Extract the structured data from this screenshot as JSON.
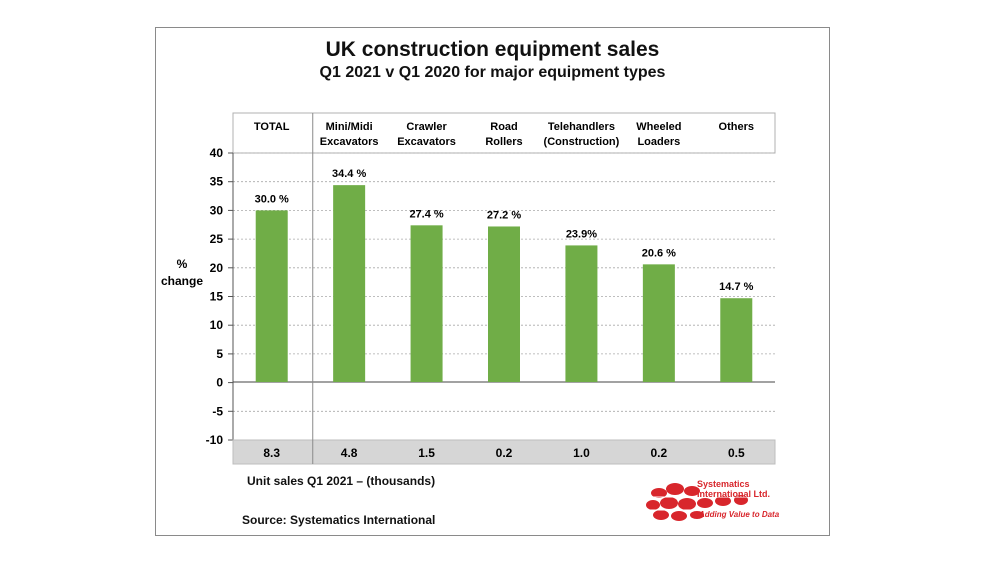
{
  "chart_data": {
    "type": "bar",
    "title": "UK construction equipment sales",
    "subtitle": "Q1 2021  v  Q1 2020 for major equipment types",
    "ylabel": [
      "%",
      "change"
    ],
    "ylim": [
      -10,
      40
    ],
    "yticks": [
      -10,
      -5,
      0,
      5,
      10,
      15,
      20,
      25,
      30,
      35,
      40
    ],
    "grid": true,
    "bar_color": "#70ad47",
    "categories": [
      [
        "TOTAL"
      ],
      [
        "Mini/Midi",
        "Excavators"
      ],
      [
        "Crawler",
        "Excavators"
      ],
      [
        "Road",
        "Rollers"
      ],
      [
        "Telehandlers",
        "(Construction)"
      ],
      [
        "Wheeled",
        "Loaders"
      ],
      [
        "Others"
      ]
    ],
    "values": [
      30.0,
      34.4,
      27.4,
      27.2,
      23.9,
      20.6,
      14.7
    ],
    "value_labels": [
      "30.0 %",
      "34.4 %",
      "27.4 %",
      "27.2 %",
      "23.9%",
      "20.6 %",
      "14.7 %"
    ],
    "unit_sales": [
      "8.3",
      "4.8",
      "1.5",
      "0.2",
      "1.0",
      "0.2",
      "0.5"
    ],
    "unit_sales_label": "Unit sales Q1 2021 –  (thousands)"
  },
  "source": "Source: Systematics International",
  "logo": {
    "name": "Systematics International Ltd.",
    "tagline": "Adding Value to Data",
    "color": "#d8262c"
  }
}
